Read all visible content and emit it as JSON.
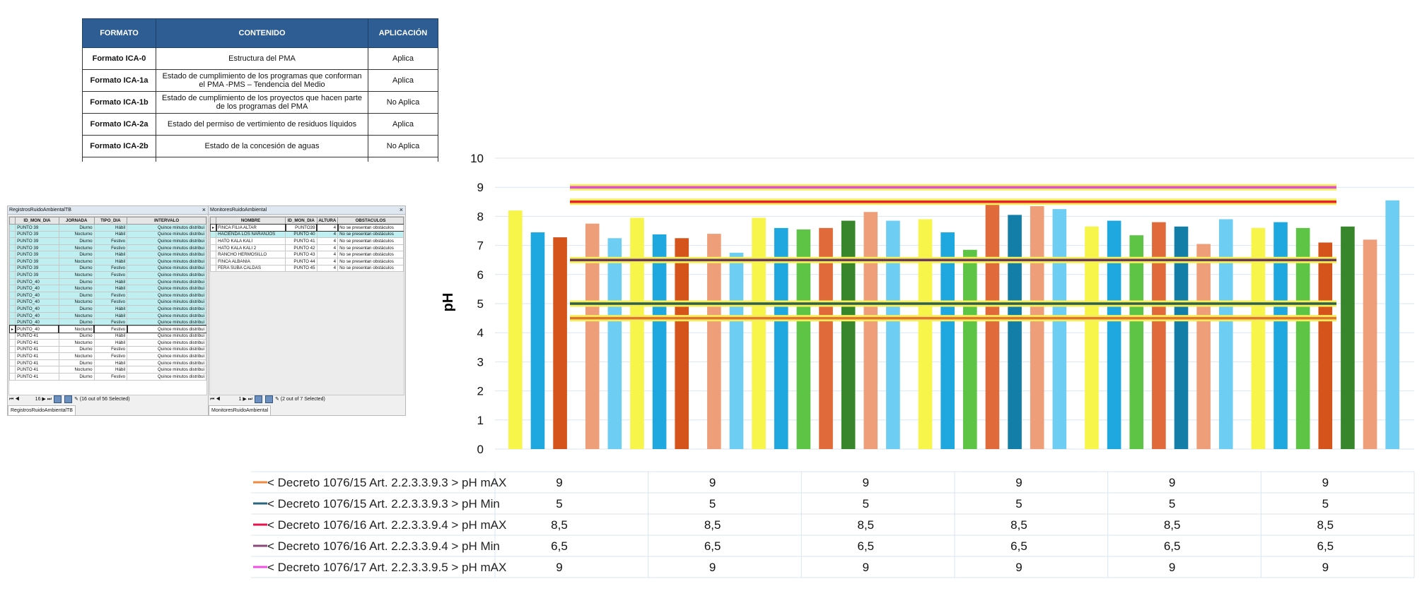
{
  "format_table": {
    "headers": [
      "FORMATO",
      "CONTENIDO",
      "APLICACIÓN"
    ],
    "rows": [
      {
        "formato": "Formato ICA-0",
        "contenido": "Estructura del PMA",
        "aplicacion": "Aplica"
      },
      {
        "formato": "Formato ICA-1a",
        "contenido": "Estado de cumplimiento de los programas que conforman el PMA -PMS – Tendencia del Medio",
        "aplicacion": "Aplica"
      },
      {
        "formato": "Formato ICA-1b",
        "contenido": "Estado de cumplimiento de los proyectos que hacen parte de los programas del PMA",
        "aplicacion": "No Aplica"
      },
      {
        "formato": "Formato ICA-2a",
        "contenido": "Estado del permiso de vertimiento de residuos líquidos",
        "aplicacion": "Aplica"
      },
      {
        "formato": "Formato ICA-2b",
        "contenido": "Estado de la concesión de aguas",
        "aplicacion": "No Aplica"
      }
    ]
  },
  "registros_window": {
    "title": "RegistrosRuidoAmbientalTB",
    "headers": [
      "ID_MON_DIA",
      "JORNADA",
      "TIPO_DIA",
      "INTERVALO"
    ],
    "rows": [
      [
        "PUNTO 39",
        "Diurno",
        "Hábil",
        "Quince minutos distribui"
      ],
      [
        "PUNTO 39",
        "Nocturno",
        "Hábil",
        "Quince minutos distribui"
      ],
      [
        "PUNTO 39",
        "Diurno",
        "Festivo",
        "Quince minutos distribui"
      ],
      [
        "PUNTO 39",
        "Nocturno",
        "Festivo",
        "Quince minutos distribui"
      ],
      [
        "PUNTO 39",
        "Diurno",
        "Hábil",
        "Quince minutos distribui"
      ],
      [
        "PUNTO 39",
        "Nocturno",
        "Hábil",
        "Quince minutos distribui"
      ],
      [
        "PUNTO 39",
        "Diurno",
        "Festivo",
        "Quince minutos distribui"
      ],
      [
        "PUNTO 39",
        "Nocturno",
        "Festivo",
        "Quince minutos distribui"
      ],
      [
        "PUNTO_40",
        "Diurno",
        "Hábil",
        "Quince minutos distribui"
      ],
      [
        "PUNTO_40",
        "Nocturno",
        "Hábil",
        "Quince minutos distribui"
      ],
      [
        "PUNTO_40",
        "Diurno",
        "Festivo",
        "Quince minutos distribui"
      ],
      [
        "PUNTO_40",
        "Nocturno",
        "Festivo",
        "Quince minutos distribui"
      ],
      [
        "PUNTO_40",
        "Diurno",
        "Hábil",
        "Quince minutos distribui"
      ],
      [
        "PUNTO_40",
        "Nocturno",
        "Hábil",
        "Quince minutos distribui"
      ],
      [
        "PUNTO_40",
        "Diurno",
        "Festivo",
        "Quince minutos distribui"
      ],
      [
        "PUNTO_40",
        "Nocturno",
        "Festivo",
        "Quince minutos distribui"
      ],
      [
        "PUNTO 41",
        "Diurno",
        "Hábil",
        "Quince minutos distribui"
      ],
      [
        "PUNTO 41",
        "Nocturno",
        "Hábil",
        "Quince minutos distribui"
      ],
      [
        "PUNTO 41",
        "Diurno",
        "Festivo",
        "Quince minutos distribui"
      ],
      [
        "PUNTO 41",
        "Nocturno",
        "Festivo",
        "Quince minutos distribui"
      ],
      [
        "PUNTO 41",
        "Diurno",
        "Hábil",
        "Quince minutos distribui"
      ],
      [
        "PUNTO 41",
        "Nocturno",
        "Hábil",
        "Quince minutos distribui"
      ],
      [
        "PUNTO 41",
        "Diurno",
        "Festivo",
        "Quince minutos distribui"
      ]
    ],
    "nav_record": "16",
    "nav_status": "(16 out of 56 Selected)",
    "tab_label": "RegistrosRuidoAmbientalTB"
  },
  "monitores_window": {
    "title": "MonitoresRuidoAmbiental",
    "headers": [
      "NOMBRE",
      "ID_MON_DIA",
      "ALTURA",
      "OBSTACULOS"
    ],
    "rows": [
      [
        "FINCA FILIA ALTAR",
        "PUNTO39",
        "4",
        "No se presentan obstáculos"
      ],
      [
        "HACIENDA LOS NARANJOS",
        "PUNTO 40",
        "4",
        "No se presentan obstáculos"
      ],
      [
        "HATO KALA KALI",
        "PUNTO 41",
        "4",
        "No se presentan obstáculos"
      ],
      [
        "HATO KALA KALI 2",
        "PUNTO 42",
        "4",
        "No se presentan obstáculos"
      ],
      [
        "RANCHO HERMOSILLO",
        "PUNTO 43",
        "4",
        "No se presentan obstáculos"
      ],
      [
        "FINCA ALBANIA",
        "PUNTO 44",
        "4",
        "No se presentan obstáculos"
      ],
      [
        "FERA SUBA CALDAS",
        "PUNTO 45",
        "4",
        "No se presentan obstáculos"
      ]
    ],
    "nav_record": "1",
    "nav_status": "(2 out of 7 Selected)",
    "tab_label": "MonitoresRuidoAmbiental"
  },
  "chart_data": {
    "type": "bar",
    "title": "",
    "xlabel": "",
    "ylabel": "pH",
    "ylim": [
      0,
      10
    ],
    "yticks": [
      "0",
      "1",
      "2",
      "3",
      "4",
      "5",
      "6",
      "7",
      "8",
      "9",
      "10"
    ],
    "colors": {
      "yellow": "#f8f54a",
      "blue": "#1fa8e0",
      "lightblue": "#6dcdf3",
      "darkorange": "#d4541c",
      "salmon": "#ef9e7a",
      "green": "#5ec445",
      "darkgreen": "#37862b",
      "orange": "#e06a3a",
      "teal": "#137fa8"
    },
    "bars": [
      {
        "group": 1,
        "color": "yellow",
        "value": 8.2
      },
      {
        "group": 1,
        "color": "blue",
        "value": 7.45
      },
      {
        "group": 1,
        "color": "darkorange",
        "value": 7.28
      },
      {
        "group": 2,
        "color": "salmon",
        "value": 7.75
      },
      {
        "group": 2,
        "color": "lightblue",
        "value": 7.25
      },
      {
        "group": 2,
        "color": "yellow",
        "value": 7.95
      },
      {
        "group": 2,
        "color": "blue",
        "value": 7.38
      },
      {
        "group": 2,
        "color": "darkorange",
        "value": 7.25
      },
      {
        "group": 3,
        "color": "salmon",
        "value": 7.4
      },
      {
        "group": 3,
        "color": "lightblue",
        "value": 6.75
      },
      {
        "group": 3,
        "color": "yellow",
        "value": 7.95
      },
      {
        "group": 3,
        "color": "blue",
        "value": 7.6
      },
      {
        "group": 3,
        "color": "green",
        "value": 7.55
      },
      {
        "group": 3,
        "color": "orange",
        "value": 7.6
      },
      {
        "group": 3,
        "color": "darkgreen",
        "value": 7.85
      },
      {
        "group": 3,
        "color": "salmon",
        "value": 8.15
      },
      {
        "group": 3,
        "color": "lightblue",
        "value": 7.85
      },
      {
        "group": 4,
        "color": "yellow",
        "value": 7.9
      },
      {
        "group": 4,
        "color": "blue",
        "value": 7.45
      },
      {
        "group": 4,
        "color": "green",
        "value": 6.85
      },
      {
        "group": 4,
        "color": "orange",
        "value": 8.6
      },
      {
        "group": 4,
        "color": "teal",
        "value": 8.05
      },
      {
        "group": 4,
        "color": "salmon",
        "value": 8.35
      },
      {
        "group": 4,
        "color": "lightblue",
        "value": 8.25
      },
      {
        "group": 5,
        "color": "yellow",
        "value": 7.65
      },
      {
        "group": 5,
        "color": "blue",
        "value": 7.85
      },
      {
        "group": 5,
        "color": "green",
        "value": 7.35
      },
      {
        "group": 5,
        "color": "orange",
        "value": 7.8
      },
      {
        "group": 5,
        "color": "teal",
        "value": 7.65
      },
      {
        "group": 5,
        "color": "salmon",
        "value": 7.05
      },
      {
        "group": 5,
        "color": "lightblue",
        "value": 7.9
      },
      {
        "group": 6,
        "color": "yellow",
        "value": 7.6
      },
      {
        "group": 6,
        "color": "blue",
        "value": 7.8
      },
      {
        "group": 6,
        "color": "green",
        "value": 7.6
      },
      {
        "group": 6,
        "color": "darkorange",
        "value": 7.1
      },
      {
        "group": 6,
        "color": "darkgreen",
        "value": 7.65
      },
      {
        "group": 6,
        "color": "salmon",
        "value": 7.2
      },
      {
        "group": 6,
        "color": "lightblue",
        "value": 8.55
      }
    ],
    "reference_lines": [
      {
        "value": 9,
        "color": "#e24bd6"
      },
      {
        "value": 8.5,
        "color": "#e5242e"
      },
      {
        "value": 6.5,
        "color": "#6b3d54"
      },
      {
        "value": 5,
        "color": "#2f5f44"
      },
      {
        "value": 4.5,
        "color": "#e0742e"
      }
    ],
    "series_table": [
      {
        "name": "< Decreto 1076/15  Art. 2.2.3.3.9.3 > pH mAX",
        "color": "#f08a3c",
        "values": [
          "9",
          "9",
          "9",
          "9",
          "9",
          "9"
        ]
      },
      {
        "name": "< Decreto 1076/15  Art. 2.2.3.3.9.3 > pH Min",
        "color": "#2a6680",
        "values": [
          "5",
          "5",
          "5",
          "5",
          "5",
          "5"
        ]
      },
      {
        "name": "< Decreto 1076/16 Art. 2.2.3.3.9.4 > pH mAX",
        "color": "#e8124a",
        "values": [
          "8,5",
          "8,5",
          "8,5",
          "8,5",
          "8,5",
          "8,5"
        ]
      },
      {
        "name": "< Decreto 1076/16 Art. 2.2.3.3.9.4 > pH Min",
        "color": "#8a4a7a",
        "values": [
          "6,5",
          "6,5",
          "6,5",
          "6,5",
          "6,5",
          "6,5"
        ]
      },
      {
        "name": "< Decreto 1076/17 Art. 2.2.3.3.9.5 > pH mAX",
        "color": "#f04fe0",
        "values": [
          "9",
          "9",
          "9",
          "9",
          "9",
          "9"
        ]
      }
    ]
  }
}
